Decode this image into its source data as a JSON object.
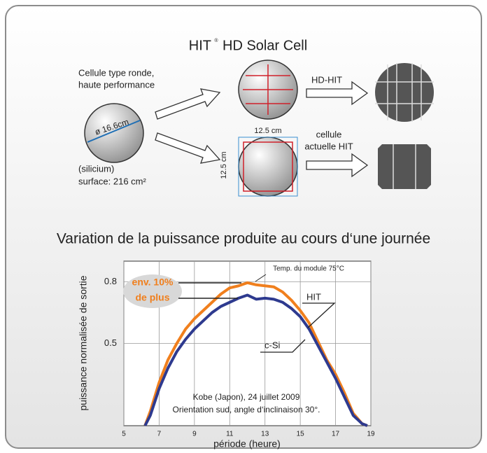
{
  "diagram": {
    "title": "HIT",
    "title_mark": "®",
    "title_rest": "HD Solar Cell",
    "round_cell_label": [
      "Cellule type ronde,",
      "haute performance"
    ],
    "diameter": "ø 16.6cm",
    "material": "(silicium)",
    "surface": "surface: 216 cm²",
    "side_top": "12.5 cm",
    "side_left": "12.5 cm",
    "hd_hit": "HD-HIT",
    "current_hit": [
      "cellule",
      "actuelle HIT"
    ]
  },
  "chart_data": {
    "type": "line",
    "title": "Variation de la puissance produite au cours d‘une journée",
    "x_label": "période (heure)",
    "y_label": "puissance normalisée de sortie",
    "x": [
      6.2,
      6.5,
      7,
      7.5,
      8,
      8.5,
      9,
      9.5,
      10,
      10.5,
      11,
      11.5,
      12,
      12.5,
      13,
      13.5,
      14,
      14.5,
      15,
      15.5,
      16,
      16.5,
      17,
      17.5,
      18,
      18.5,
      18.8
    ],
    "series": [
      {
        "name": "HIT",
        "color": "#f07f1d",
        "values": [
          0.1,
          0.17,
          0.31,
          0.42,
          0.5,
          0.57,
          0.62,
          0.66,
          0.7,
          0.74,
          0.77,
          0.78,
          0.795,
          0.785,
          0.78,
          0.775,
          0.75,
          0.71,
          0.66,
          0.6,
          0.51,
          0.42,
          0.35,
          0.26,
          0.16,
          0.11,
          0.1
        ]
      },
      {
        "name": "c-Si",
        "color": "#2e3a8f",
        "values": [
          0.1,
          0.15,
          0.28,
          0.38,
          0.46,
          0.52,
          0.57,
          0.61,
          0.65,
          0.68,
          0.7,
          0.72,
          0.735,
          0.715,
          0.72,
          0.715,
          0.7,
          0.67,
          0.63,
          0.57,
          0.49,
          0.41,
          0.33,
          0.24,
          0.15,
          0.11,
          0.1
        ]
      }
    ],
    "xlim": [
      5,
      19
    ],
    "xticks": [
      5,
      7,
      9,
      11,
      13,
      15,
      17,
      19
    ],
    "ylim": [
      0.1,
      0.9
    ],
    "yticks": [
      0.5,
      0.8
    ],
    "grid": true,
    "annotations": [
      "Temp. du module 75°C",
      "env. 10%",
      "de plus",
      "Kobe (Japon), 24 juillet 2009",
      "Orientation sud, angle d‘inclinaison 30°."
    ]
  }
}
